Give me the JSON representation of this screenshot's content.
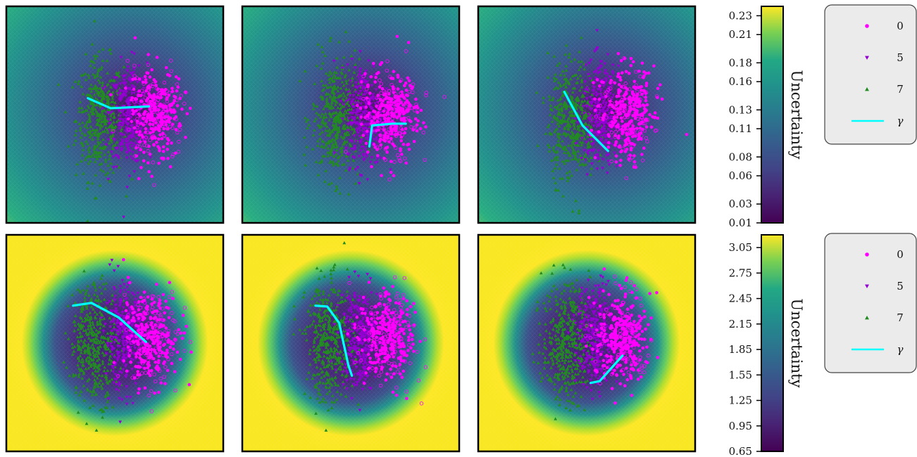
{
  "chart_data": {
    "type": "heatmap",
    "grid": false,
    "legend": {
      "placement": "right",
      "entries": [
        {
          "label": "0",
          "marker": "circle",
          "color": "#ff00ff"
        },
        {
          "label": "5",
          "marker": "triangle-down",
          "color": "#9400d3"
        },
        {
          "label": "7",
          "marker": "triangle-up",
          "color": "#228b22"
        },
        {
          "label": "γ",
          "marker": "line",
          "color": "#00ffff"
        }
      ]
    },
    "rows": [
      {
        "colorbar": {
          "label": "Uncertainty",
          "colormap": "viridis",
          "range": [
            0.01,
            0.24
          ],
          "ticks": [
            "0.23",
            "0.21",
            "0.18",
            "0.16",
            "0.13",
            "0.11",
            "0.08",
            "0.06",
            "0.03",
            "0.01"
          ]
        },
        "panels": [
          {
            "path": [
              [
                -0.45,
                0.18
              ],
              [
                -0.2,
                0.07
              ],
              [
                0.22,
                0.09
              ]
            ]
          },
          {
            "path": [
              [
                0.05,
                -0.35
              ],
              [
                0.08,
                -0.12
              ],
              [
                0.3,
                -0.1
              ],
              [
                0.45,
                -0.1
              ]
            ]
          },
          {
            "path": [
              [
                -0.4,
                0.25
              ],
              [
                -0.2,
                -0.12
              ],
              [
                0.08,
                -0.4
              ]
            ]
          }
        ]
      },
      {
        "colorbar": {
          "label": "Uncertainty",
          "colormap": "viridis",
          "range": [
            0.65,
            3.2
          ],
          "ticks": [
            "3.05",
            "2.75",
            "2.45",
            "2.15",
            "1.85",
            "1.55",
            "1.25",
            "0.95",
            "0.65"
          ]
        },
        "panels": [
          {
            "path": [
              [
                -0.55,
                0.35
              ],
              [
                -0.35,
                0.38
              ],
              [
                -0.05,
                0.22
              ],
              [
                0.25,
                -0.05
              ]
            ]
          },
          {
            "path": [
              [
                -0.48,
                0.35
              ],
              [
                -0.35,
                0.34
              ],
              [
                -0.22,
                0.16
              ],
              [
                -0.12,
                -0.3
              ],
              [
                -0.08,
                -0.42
              ]
            ]
          },
          {
            "path": [
              [
                -0.05,
                -0.5
              ],
              [
                0.05,
                -0.48
              ],
              [
                0.3,
                -0.2
              ]
            ]
          }
        ]
      }
    ]
  }
}
